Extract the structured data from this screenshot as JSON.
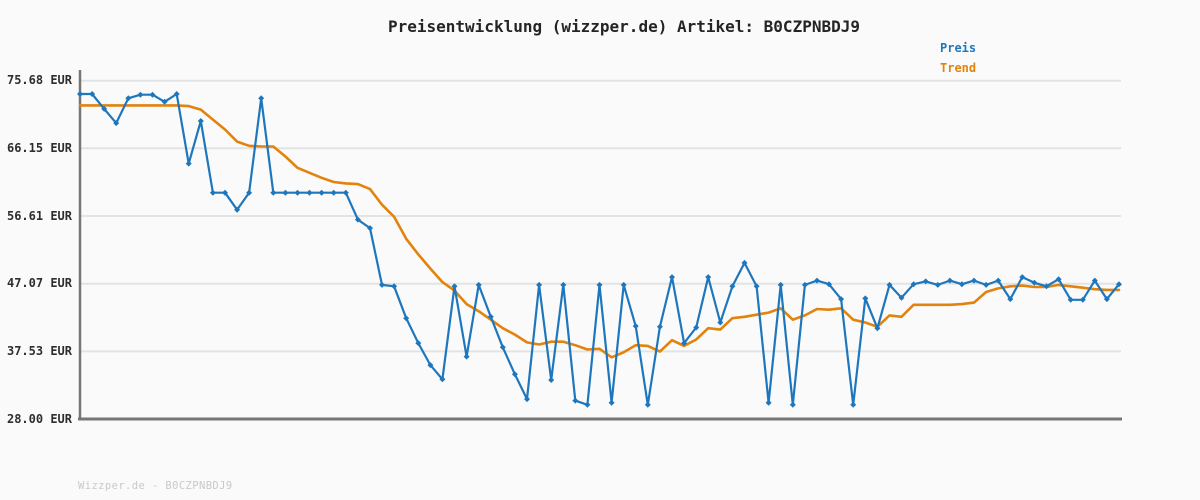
{
  "page": {
    "watermark": "Wizzper.de - B0CZPNBDJ9",
    "background_color": "#fafafa"
  },
  "chart_data": {
    "type": "line",
    "title": "Preisentwicklung (wizzper.de) Artikel: B0CZPNBDJ9",
    "xlabel": "",
    "ylabel": "EUR",
    "ylim": [
      28.0,
      75.68
    ],
    "yticks": [
      {
        "label": "75.68 EUR",
        "value": 75.68
      },
      {
        "label": "66.15 EUR",
        "value": 66.15
      },
      {
        "label": "56.61 EUR",
        "value": 56.61
      },
      {
        "label": "47.07 EUR",
        "value": 47.07
      },
      {
        "label": "37.53 EUR",
        "value": 37.53
      },
      {
        "label": "28.00 EUR",
        "value": 28.0
      }
    ],
    "xticks_visible": false,
    "grid": "horizontal",
    "legend_position": "top-right",
    "grid_color": "#e3e3e3",
    "axis_color": "#767676",
    "series": [
      {
        "name": "Trend",
        "color": "#e2830e",
        "marker": "none",
        "values": [
          72.2,
          72.2,
          72.2,
          72.2,
          72.2,
          72.2,
          72.2,
          72.2,
          72.2,
          72.1,
          71.6,
          70.2,
          68.8,
          67.1,
          66.5,
          66.4,
          66.4,
          65.0,
          63.4,
          62.7,
          62.0,
          61.4,
          61.2,
          61.1,
          60.4,
          58.2,
          56.5,
          53.4,
          51.2,
          49.2,
          47.3,
          46.1,
          44.2,
          43.2,
          42.0,
          40.8,
          39.9,
          38.8,
          38.5,
          38.9,
          38.9,
          38.4,
          37.8,
          37.9,
          36.7,
          37.4,
          38.4,
          38.3,
          37.5,
          39.1,
          38.3,
          39.2,
          40.8,
          40.6,
          42.2,
          42.4,
          42.7,
          43.0,
          43.6,
          42.0,
          42.6,
          43.5,
          43.4,
          43.6,
          42.0,
          41.6,
          41.0,
          42.6,
          42.4,
          44.1,
          44.1,
          44.1,
          44.1,
          44.2,
          44.4,
          45.9,
          46.4,
          46.7,
          46.8,
          46.6,
          46.6,
          46.9,
          46.7,
          46.5,
          46.3,
          46.2,
          46.2
        ]
      },
      {
        "name": "Preis",
        "color": "#1e77bd",
        "marker": "diamond",
        "values": [
          73.8,
          73.8,
          71.7,
          69.7,
          73.2,
          73.7,
          73.7,
          72.7,
          73.8,
          64.0,
          70.0,
          59.9,
          59.9,
          57.5,
          59.9,
          73.2,
          59.9,
          59.9,
          59.9,
          59.9,
          59.9,
          59.9,
          59.9,
          56.1,
          54.9,
          46.9,
          46.7,
          42.2,
          38.7,
          35.6,
          33.6,
          46.7,
          36.8,
          46.9,
          42.4,
          38.1,
          34.3,
          30.8,
          46.9,
          33.5,
          46.9,
          30.6,
          30.0,
          46.9,
          30.3,
          46.9,
          41.1,
          30.0,
          41.0,
          48.0,
          38.7,
          40.9,
          48.0,
          41.6,
          46.7,
          50.0,
          46.7,
          30.3,
          46.9,
          30.0,
          46.9,
          47.5,
          47.0,
          44.9,
          30.0,
          45.0,
          40.8,
          46.9,
          45.1,
          47.0,
          47.4,
          46.9,
          47.5,
          47.0,
          47.5,
          46.9,
          47.5,
          44.9,
          48.0,
          47.2,
          46.7,
          47.7,
          44.8,
          44.8,
          47.5,
          44.9,
          47.0
        ]
      }
    ]
  }
}
